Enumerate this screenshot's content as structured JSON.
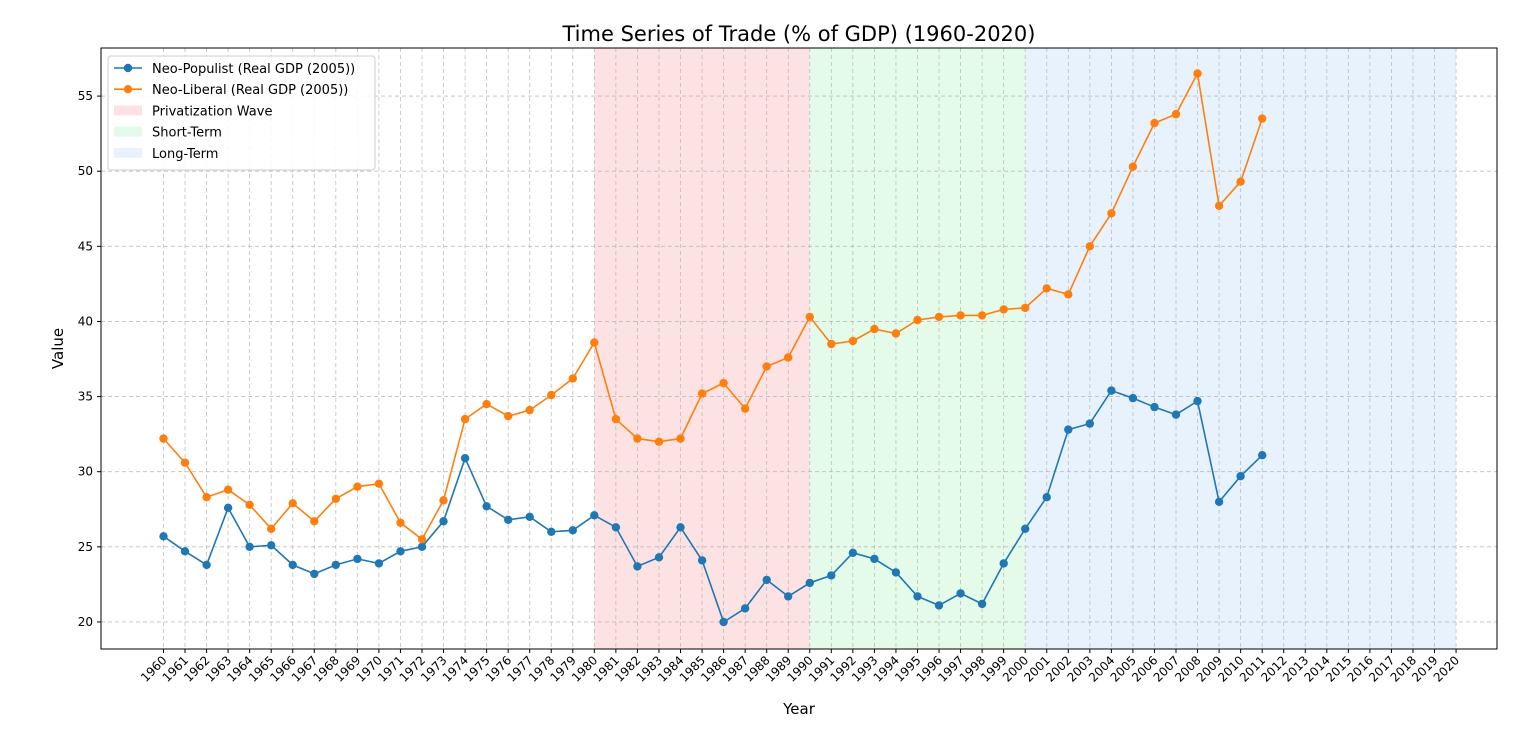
{
  "chart_data": {
    "type": "line",
    "title": "Time Series of Trade (% of GDP) (1960-2020)",
    "xlabel": "Year",
    "ylabel": "Value",
    "x": [
      1960,
      1961,
      1962,
      1963,
      1964,
      1965,
      1966,
      1967,
      1968,
      1969,
      1970,
      1971,
      1972,
      1973,
      1974,
      1975,
      1976,
      1977,
      1978,
      1979,
      1980,
      1981,
      1982,
      1983,
      1984,
      1985,
      1986,
      1987,
      1988,
      1989,
      1990,
      1991,
      1992,
      1993,
      1994,
      1995,
      1996,
      1997,
      1998,
      1999,
      2000,
      2001,
      2002,
      2003,
      2004,
      2005,
      2006,
      2007,
      2008,
      2009,
      2010,
      2011,
      2012,
      2013,
      2014,
      2015,
      2016,
      2017,
      2018,
      2019,
      2020
    ],
    "xlim": [
      1957.1,
      2021.9
    ],
    "ylim": [
      18.2,
      58.2
    ],
    "yticks": [
      20,
      25,
      30,
      35,
      40,
      45,
      50,
      55
    ],
    "grid": true,
    "legend_position": "top-left",
    "series": [
      {
        "name": "Neo-Populist (Real GDP (2005))",
        "color": "#1f77b4",
        "marker": "circle",
        "values": [
          25.7,
          24.7,
          23.8,
          27.6,
          25.0,
          25.1,
          23.8,
          23.2,
          23.8,
          24.2,
          23.9,
          24.7,
          25.0,
          26.7,
          30.9,
          27.7,
          26.8,
          27.0,
          26.0,
          26.1,
          27.1,
          26.3,
          23.7,
          24.3,
          26.3,
          24.1,
          20.0,
          20.9,
          22.8,
          21.7,
          22.6,
          23.1,
          24.6,
          24.2,
          23.3,
          21.7,
          21.1,
          21.9,
          21.2,
          23.9,
          26.2,
          28.3,
          32.8,
          33.2,
          35.4,
          34.9,
          34.3,
          33.8,
          34.7,
          28.0,
          29.7,
          31.1,
          null,
          null,
          null,
          null,
          null,
          null,
          null,
          null,
          null
        ]
      },
      {
        "name": "Neo-Liberal (Real GDP (2005))",
        "color": "#ff7f0e",
        "marker": "circle",
        "values": [
          32.2,
          30.6,
          28.3,
          28.8,
          27.8,
          26.2,
          27.9,
          26.7,
          28.2,
          29.0,
          29.2,
          26.6,
          25.5,
          28.1,
          33.5,
          34.5,
          33.7,
          34.1,
          35.1,
          36.2,
          38.6,
          33.5,
          32.2,
          32.0,
          32.2,
          35.2,
          35.9,
          34.2,
          37.0,
          37.6,
          40.3,
          38.5,
          38.7,
          39.5,
          39.2,
          40.1,
          40.3,
          40.4,
          40.4,
          40.8,
          40.9,
          42.2,
          41.8,
          45.0,
          47.2,
          50.3,
          53.2,
          53.8,
          56.5,
          47.7,
          49.3,
          53.5,
          null,
          null,
          null,
          null,
          null,
          null,
          null,
          null,
          null
        ]
      }
    ],
    "spans": [
      {
        "name": "Privatization Wave",
        "start": 1980,
        "end": 1990,
        "color": "#fde2e3"
      },
      {
        "name": "Short-Term",
        "start": 1990,
        "end": 2000,
        "color": "#e5fbe9"
      },
      {
        "name": "Long-Term",
        "start": 2000,
        "end": 2020,
        "color": "#e7f2fd"
      }
    ]
  }
}
